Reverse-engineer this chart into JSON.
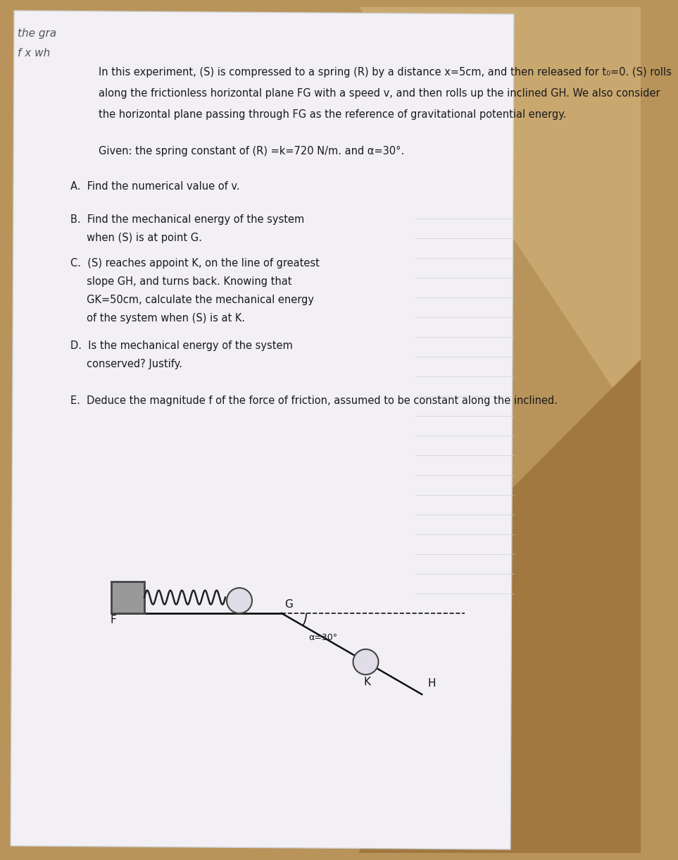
{
  "bg_color_top": "#c8a870",
  "bg_color": "#b8935a",
  "paper_color": "#f2f0f5",
  "paper_edge": "#cccccc",
  "text_color": "#1a1a1a",
  "gray_text": "#555555",
  "corner_top_left_1": "the gra",
  "corner_top_left_2": "f x wh",
  "intro_line1": "In this experiment, (S) is compressed to a spring (R) by a distance x=5cm, and then released for t₀=0. (S) rolls",
  "intro_line2": "along the frictionless horizontal plane FG with a speed v, and then rolls up the inclined GH. We also consider",
  "intro_line3": "the horizontal plane passing through FG as the reference of gravitational potential energy.",
  "given": "Given: the spring constant of (R) =k=720 N/m. and α=30°.",
  "q_A": "A.  Find the numerical value of v.",
  "q_B_1": "B.  Find the mechanical energy of the system",
  "q_B_2": "     when (S) is at point G.",
  "q_C_1": "C.  (S) reaches appoint K, on the line of greatest",
  "q_C_2": "     slope GH, and turns back. Knowing that",
  "q_C_3": "     GK=50cm, calculate the mechanical energy",
  "q_C_4": "     of the system when (S) is at K.",
  "q_D_1": "D.  Is the mechanical energy of the system",
  "q_D_2": "     conserved? Justify.",
  "q_E": "E.  Deduce the magnitude f of the force of friction, assumed to be constant along the inclined.",
  "diagram": {
    "wall_color": "#999999",
    "wall_edge": "#444444",
    "spring_color": "#222222",
    "ball_color": "#e0dde8",
    "ball_edge": "#444444",
    "line_color": "#111111",
    "F_label": "F",
    "G_label": "G",
    "K_label": "K",
    "H_label": "H",
    "angle_label": "α=30°",
    "n_coils": 7
  }
}
